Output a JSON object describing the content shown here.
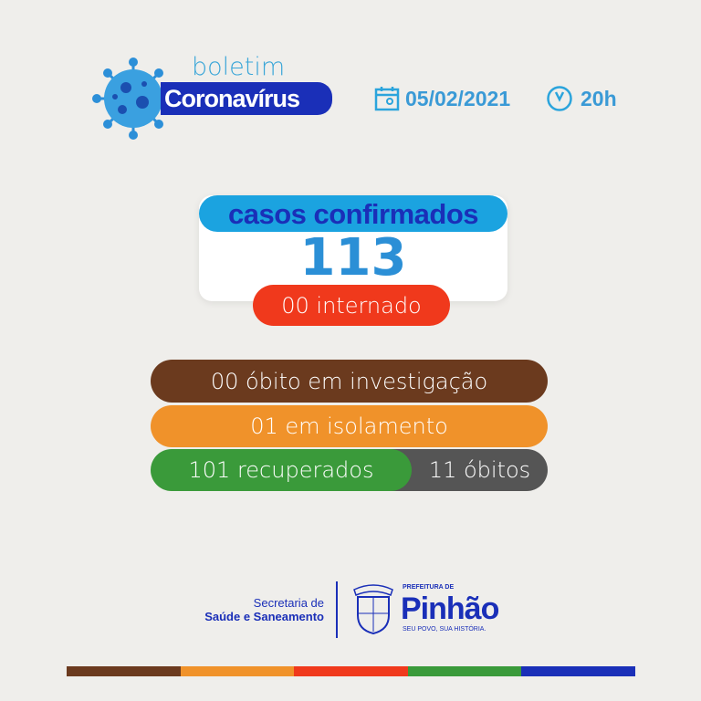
{
  "header": {
    "subtitle": "boletim",
    "title": "Coronavírus",
    "date": "05/02/2021",
    "time": "20h",
    "icons": [
      "virus-icon",
      "calendar-icon",
      "clock-icon"
    ]
  },
  "confirmed": {
    "label": "casos confirmados",
    "value": "113",
    "hospitalized": "00 internado"
  },
  "stats": {
    "deaths_investigation": "00 óbito em investigação",
    "isolation": "01 em isolamento",
    "recovered": "101 recuperados",
    "deaths": "11 óbitos"
  },
  "footer": {
    "secretaria_line1": "Secretaria de",
    "secretaria_line2": "Saúde e Saneamento",
    "prefeitura_label": "PREFEITURA DE",
    "city": "Pinhão",
    "slogan": "SEU POVO, SUA HISTÓRIA.",
    "crest_text": "PINHÃO"
  },
  "colors": {
    "dark_blue": "#1a2fb8",
    "light_blue": "#1ba3e0",
    "red": "#f0391c",
    "brown": "#6b3a1e",
    "orange": "#f0922a",
    "green": "#3a9a3a",
    "gray": "#555555"
  }
}
